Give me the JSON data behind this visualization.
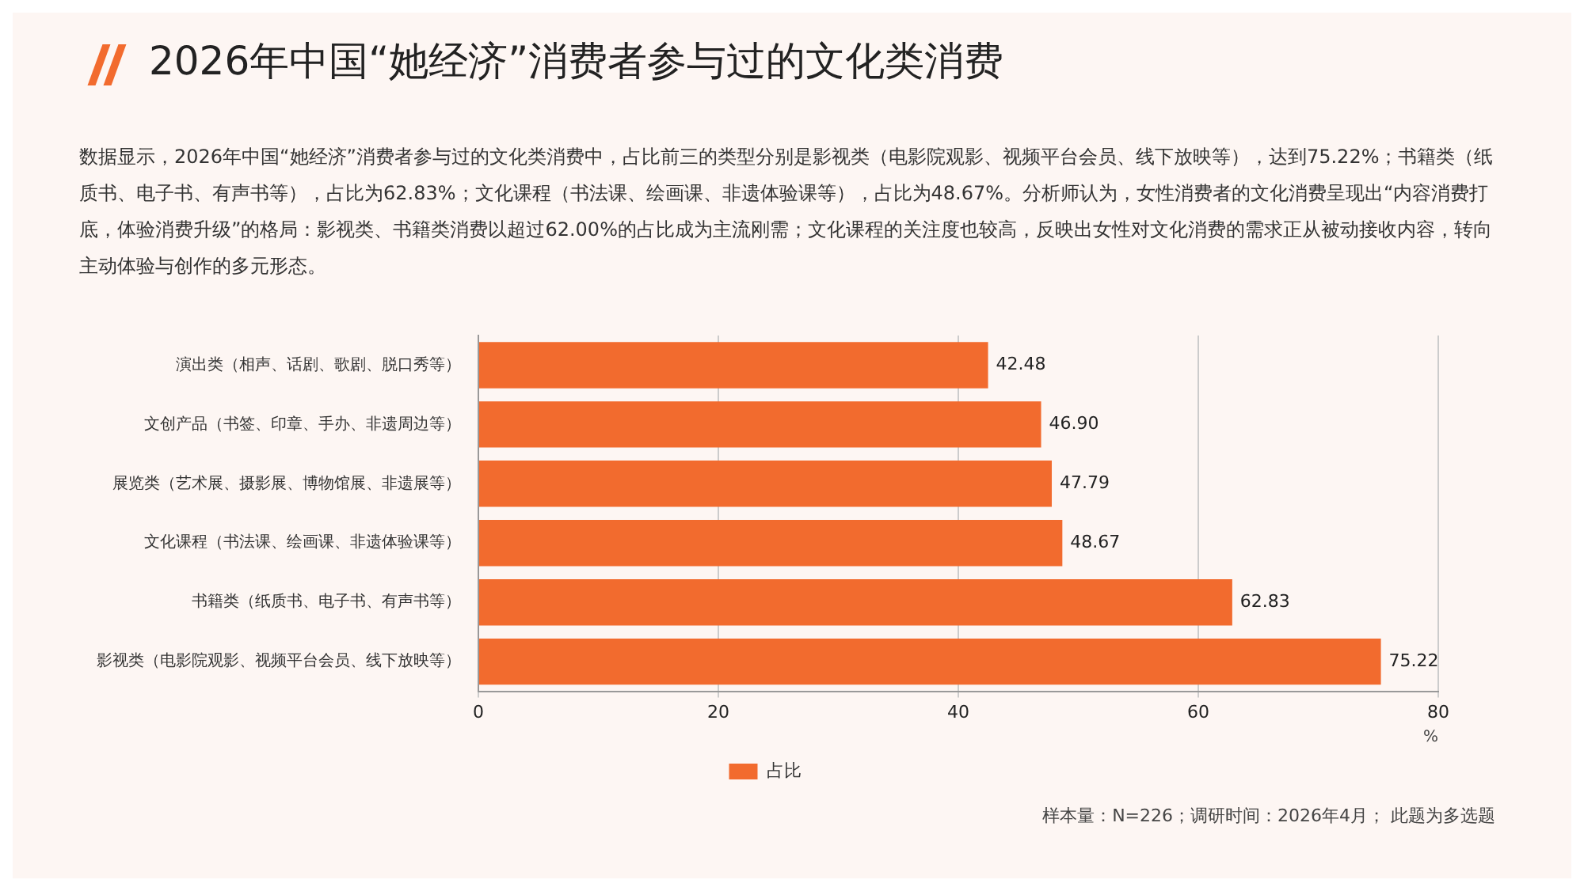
{
  "chart_data": {
    "type": "bar",
    "orientation": "horizontal",
    "title": "2026年中国“她经济”消费者参与过的文化类消费",
    "subtitle": "数据显示，2026年中国“她经济”消费者参与过的文化类消费中，占比前三的类型分别是影视类（电影院观影、视频平台会员、线下放映等），达到75.22%；书籍类（纸质书、电子书、有声书等），占比为62.83%；文化课程（书法课、绘画课、非遗体验课等），占比为48.67%。分析师认为，女性消费者的文化消费呈现出“内容消费打底，体验消费升级”的格局：影视类、书籍类消费以超过62.00%的占比成为主流刚需；文化课程的关注度也较高，反映出女性对文化消费的需求正从被动接收内容，转向主动体验与创作的多元形态。",
    "categories": [
      "演出类（相声、话剧、歌剧、脱口秀等）",
      "文创产品（书签、印章、手办、非遗周边等）",
      "展览类（艺术展、摄影展、博物馆展、非遗展等）",
      "文化课程（书法课、绘画课、非遗体验课等）",
      "书籍类（纸质书、电子书、有声书等）",
      "影视类（电影院观影、视频平台会员、线下放映等）"
    ],
    "series": [
      {
        "name": "占比",
        "color": "#f26b2e",
        "values": [
          42.48,
          46.9,
          47.79,
          48.67,
          62.83,
          75.22
        ],
        "value_labels": [
          "42.48",
          "46.90",
          "47.79",
          "48.67",
          "62.83",
          "75.22"
        ]
      }
    ],
    "xlabel": "%",
    "xlim": [
      0,
      80
    ],
    "xticks": [
      0,
      20,
      40,
      60,
      80
    ],
    "grid": "x",
    "legend": "bottom",
    "annotations": [
      "样本量：N=226；调研时间：2026年4月； 此题为多选题"
    ]
  }
}
